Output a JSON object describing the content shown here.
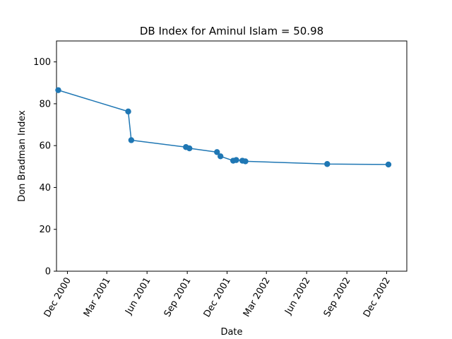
{
  "chart_data": {
    "type": "line",
    "title": "DB Index for Aminul Islam = 50.98",
    "xlabel": "Date",
    "ylabel": "Don Bradman Index",
    "ylim": [
      0,
      110
    ],
    "xlim": [
      "2000-11-06",
      "2003-01-16"
    ],
    "y_ticks": [
      0,
      20,
      40,
      60,
      80,
      100
    ],
    "x_ticks": [
      {
        "date": "2000-12-01",
        "label": "Dec 2000"
      },
      {
        "date": "2001-03-01",
        "label": "Mar 2001"
      },
      {
        "date": "2001-06-01",
        "label": "Jun 2001"
      },
      {
        "date": "2001-09-01",
        "label": "Sep 2001"
      },
      {
        "date": "2001-12-01",
        "label": "Dec 2001"
      },
      {
        "date": "2002-03-01",
        "label": "Mar 2002"
      },
      {
        "date": "2002-06-01",
        "label": "Jun 2002"
      },
      {
        "date": "2002-09-01",
        "label": "Sep 2002"
      },
      {
        "date": "2002-12-01",
        "label": "Dec 2002"
      }
    ],
    "grid": false,
    "series": [
      {
        "color": "#1f77b4",
        "marker": "circle",
        "points": [
          {
            "x": "2000-11-10",
            "y": 86.5
          },
          {
            "x": "2001-04-19",
            "y": 76.3
          },
          {
            "x": "2001-04-26",
            "y": 62.6
          },
          {
            "x": "2001-08-29",
            "y": 59.3
          },
          {
            "x": "2001-09-06",
            "y": 58.7
          },
          {
            "x": "2001-11-08",
            "y": 56.9
          },
          {
            "x": "2001-11-16",
            "y": 54.9
          },
          {
            "x": "2001-12-15",
            "y": 52.8
          },
          {
            "x": "2001-12-22",
            "y": 53.1
          },
          {
            "x": "2002-01-05",
            "y": 52.8
          },
          {
            "x": "2002-01-12",
            "y": 52.5
          },
          {
            "x": "2002-07-18",
            "y": 51.2
          },
          {
            "x": "2002-12-05",
            "y": 50.98
          }
        ]
      }
    ]
  }
}
